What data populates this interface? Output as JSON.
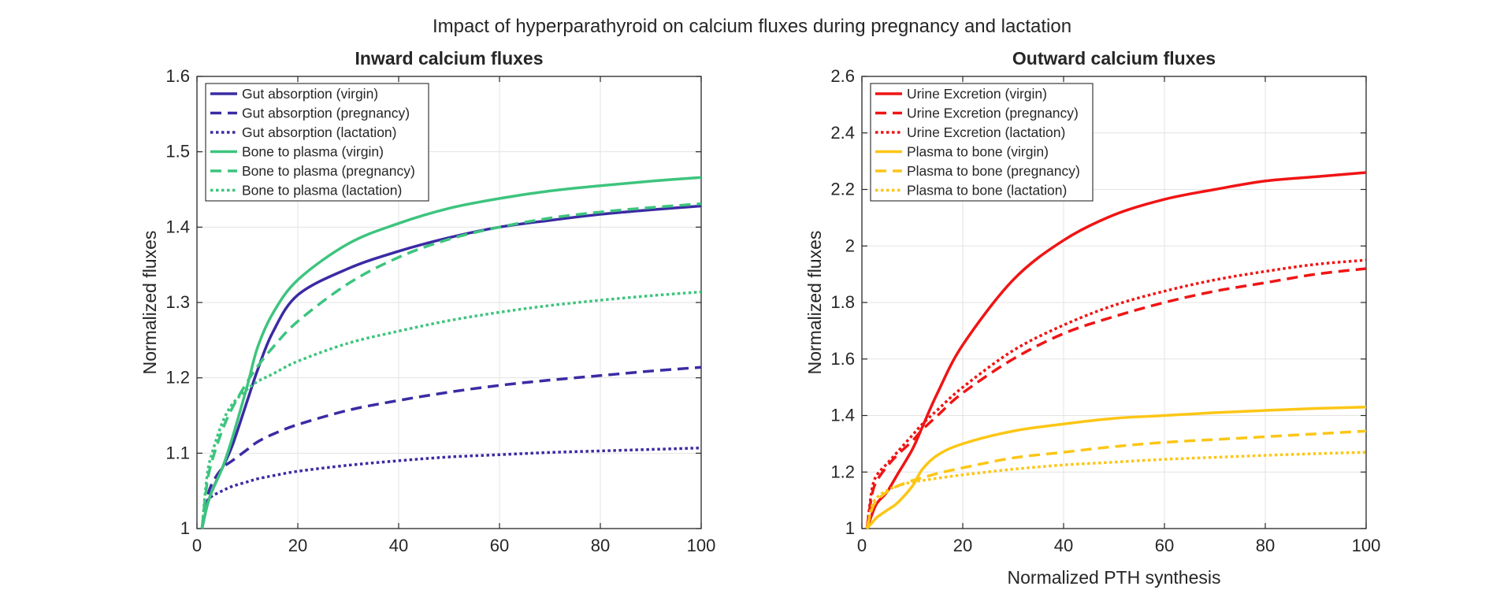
{
  "figure_title": "Impact of hyperparathyroid on calcium fluxes during pregnancy and lactation",
  "chart_data": [
    {
      "type": "line",
      "title": "Inward calcium fluxes",
      "xlabel": "",
      "ylabel": "Normalized fluxes",
      "xlim": [
        0,
        100
      ],
      "ylim": [
        1,
        1.6
      ],
      "xticks": [
        0,
        20,
        40,
        60,
        80,
        100
      ],
      "yticks": [
        1,
        1.1,
        1.2,
        1.3,
        1.4,
        1.5,
        1.6
      ],
      "ytick_labels": [
        "1",
        "1.1",
        "1.2",
        "1.3",
        "1.4",
        "1.5",
        "1.6"
      ],
      "grid": true,
      "legend_position": "top-left",
      "x": [
        1,
        2,
        3,
        5,
        7,
        10,
        12,
        15,
        20,
        30,
        40,
        50,
        60,
        70,
        80,
        90,
        100
      ],
      "series": [
        {
          "name": "Gut absorption (virgin)",
          "color": "#3a2ba3",
          "dash": "solid",
          "values": [
            1.0,
            1.03,
            1.05,
            1.08,
            1.11,
            1.17,
            1.21,
            1.26,
            1.31,
            1.345,
            1.368,
            1.386,
            1.4,
            1.409,
            1.417,
            1.423,
            1.428
          ]
        },
        {
          "name": "Gut absorption (pregnancy)",
          "color": "#3a2ba3",
          "dash": "dashed",
          "values": [
            1.0,
            1.04,
            1.06,
            1.08,
            1.09,
            1.105,
            1.115,
            1.125,
            1.138,
            1.157,
            1.17,
            1.181,
            1.19,
            1.197,
            1.203,
            1.209,
            1.214
          ]
        },
        {
          "name": "Gut absorption (lactation)",
          "color": "#3a2ba3",
          "dash": "dotted",
          "values": [
            1.0,
            1.035,
            1.043,
            1.05,
            1.056,
            1.062,
            1.066,
            1.07,
            1.076,
            1.084,
            1.09,
            1.095,
            1.098,
            1.101,
            1.103,
            1.105,
            1.107
          ]
        },
        {
          "name": "Bone to plasma (virgin)",
          "color": "#3dc47e",
          "dash": "solid",
          "values": [
            1.0,
            1.03,
            1.05,
            1.08,
            1.12,
            1.19,
            1.24,
            1.285,
            1.33,
            1.378,
            1.405,
            1.425,
            1.438,
            1.448,
            1.455,
            1.461,
            1.466
          ]
        },
        {
          "name": "Bone to plasma (pregnancy)",
          "color": "#3dc47e",
          "dash": "dashed",
          "values": [
            1.0,
            1.06,
            1.09,
            1.13,
            1.16,
            1.195,
            1.215,
            1.24,
            1.275,
            1.325,
            1.36,
            1.384,
            1.4,
            1.412,
            1.42,
            1.426,
            1.431
          ]
        },
        {
          "name": "Bone to plasma (lactation)",
          "color": "#3dc47e",
          "dash": "dotted",
          "values": [
            1.0,
            1.07,
            1.1,
            1.14,
            1.165,
            1.185,
            1.195,
            1.205,
            1.222,
            1.246,
            1.262,
            1.276,
            1.287,
            1.296,
            1.303,
            1.309,
            1.314
          ]
        }
      ]
    },
    {
      "type": "line",
      "title": "Outward calcium fluxes",
      "xlabel": "Normalized PTH synthesis",
      "ylabel": "Normalized fluxes",
      "xlim": [
        0,
        100
      ],
      "ylim": [
        1,
        2.6
      ],
      "xticks": [
        0,
        20,
        40,
        60,
        80,
        100
      ],
      "yticks": [
        1,
        1.2,
        1.4,
        1.6,
        1.8,
        2,
        2.2,
        2.4,
        2.6
      ],
      "ytick_labels": [
        "1",
        "1.2",
        "1.4",
        "1.6",
        "1.8",
        "2",
        "2.2",
        "2.4",
        "2.6"
      ],
      "grid": true,
      "legend_position": "top-left",
      "x": [
        1,
        2,
        3,
        5,
        7,
        10,
        12,
        15,
        20,
        30,
        40,
        50,
        60,
        70,
        80,
        90,
        100
      ],
      "series": [
        {
          "name": "Urine Excretion (virgin)",
          "color": "#f01414",
          "dash": "solid",
          "values": [
            1.0,
            1.05,
            1.09,
            1.13,
            1.19,
            1.28,
            1.36,
            1.48,
            1.65,
            1.88,
            2.02,
            2.11,
            2.165,
            2.2,
            2.23,
            2.245,
            2.26
          ]
        },
        {
          "name": "Urine Excretion (pregnancy)",
          "color": "#f01414",
          "dash": "dashed",
          "values": [
            1.0,
            1.12,
            1.17,
            1.22,
            1.26,
            1.31,
            1.35,
            1.4,
            1.48,
            1.6,
            1.69,
            1.75,
            1.8,
            1.84,
            1.87,
            1.9,
            1.92
          ]
        },
        {
          "name": "Urine Excretion (lactation)",
          "color": "#f01414",
          "dash": "dotted",
          "values": [
            1.0,
            1.14,
            1.19,
            1.23,
            1.27,
            1.33,
            1.37,
            1.42,
            1.5,
            1.63,
            1.72,
            1.79,
            1.84,
            1.88,
            1.91,
            1.935,
            1.95
          ]
        },
        {
          "name": "Plasma to bone (virgin)",
          "color": "#fcc615",
          "dash": "solid",
          "values": [
            1.0,
            1.02,
            1.04,
            1.065,
            1.09,
            1.15,
            1.21,
            1.26,
            1.3,
            1.345,
            1.37,
            1.39,
            1.4,
            1.41,
            1.418,
            1.425,
            1.43
          ]
        },
        {
          "name": "Plasma to bone (pregnancy)",
          "color": "#fcc615",
          "dash": "dashed",
          "values": [
            1.0,
            1.07,
            1.1,
            1.13,
            1.15,
            1.17,
            1.18,
            1.195,
            1.215,
            1.25,
            1.27,
            1.29,
            1.305,
            1.315,
            1.325,
            1.335,
            1.345
          ]
        },
        {
          "name": "Plasma to bone (lactation)",
          "color": "#fcc615",
          "dash": "dotted",
          "values": [
            1.0,
            1.08,
            1.11,
            1.135,
            1.15,
            1.165,
            1.17,
            1.178,
            1.19,
            1.21,
            1.225,
            1.235,
            1.245,
            1.252,
            1.259,
            1.265,
            1.27
          ]
        }
      ]
    }
  ]
}
